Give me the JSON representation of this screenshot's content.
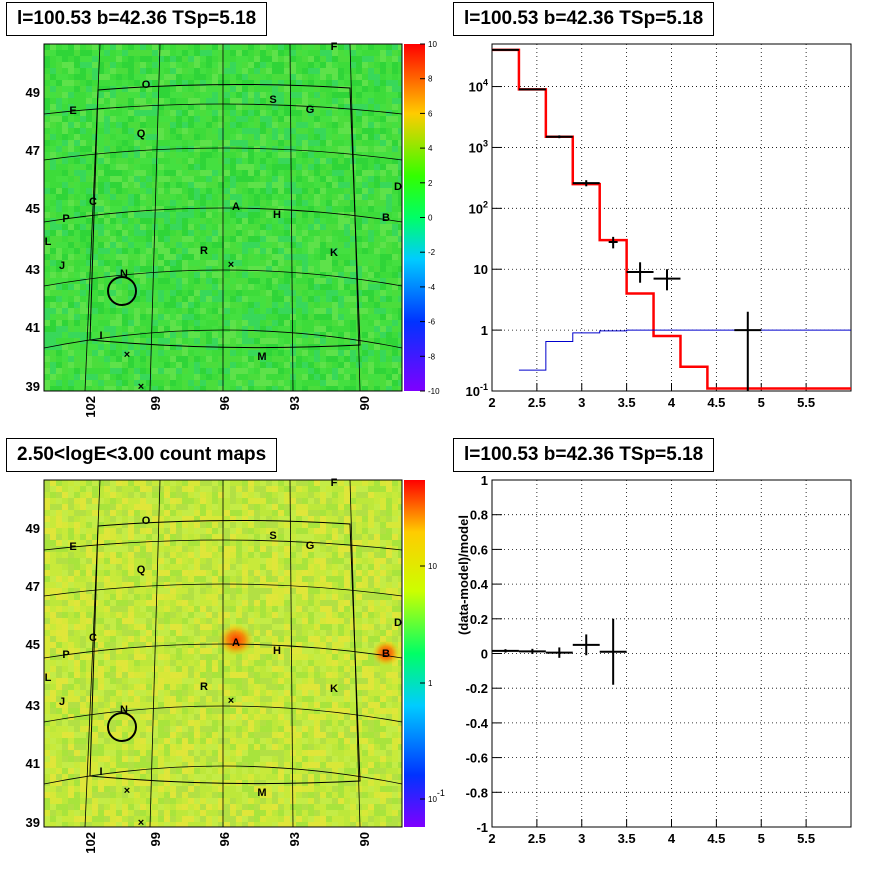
{
  "titles": {
    "map_top": "l=100.53 b=42.36 TSp=5.18",
    "spec_top": "l=100.53 b=42.36 TSp=5.18",
    "map_bottom": "2.50<logE<3.00 count maps",
    "resid_bottom": "l=100.53 b=42.36 TSp=5.18"
  },
  "map_axes": {
    "lat_ticks": [
      "49",
      "47",
      "45",
      "43",
      "41",
      "39"
    ],
    "lon_ticks": [
      "102",
      "99",
      "96",
      "93",
      "90"
    ]
  },
  "sources": [
    "F",
    "O",
    "S",
    "G",
    "E",
    "Q",
    "D",
    "C",
    "A",
    "H",
    "P",
    "B",
    "L",
    "R",
    "K",
    "J",
    "N",
    "I",
    "M"
  ],
  "colorbar_top": {
    "ticks": [
      "10",
      "8",
      "6",
      "4",
      "2",
      "0",
      "-2",
      "-4",
      "-6",
      "-8",
      "-10"
    ]
  },
  "colorbar_bottom": {
    "ticks": [
      "10",
      "1",
      "10^-1"
    ]
  },
  "chart_data": [
    {
      "type": "line",
      "panel": "spectrum",
      "log_y": true,
      "xlim": [
        2,
        6
      ],
      "ylim": [
        0.1,
        50000
      ],
      "x_ticks": [
        "2",
        "2.5",
        "3",
        "3.5",
        "4",
        "4.5",
        "5",
        "5.5"
      ],
      "y_ticks": [
        "10^-1",
        "1",
        "10",
        "10^2",
        "10^3",
        "10^4"
      ],
      "grid": true,
      "series": [
        {
          "style": "red-histogram",
          "bins": [
            2.0,
            2.3,
            2.6,
            2.9,
            3.2,
            3.5,
            3.8,
            4.1,
            4.4,
            4.7,
            5.0,
            5.3,
            5.6,
            6.0
          ],
          "values": [
            40000,
            9000,
            1500,
            250,
            30,
            4,
            0.8,
            0.25,
            0.11,
            0.11,
            0.11,
            0.11,
            0.11
          ]
        },
        {
          "style": "blue-histogram",
          "bins": [
            2.3,
            2.6,
            2.9,
            3.2,
            3.5,
            6.0
          ],
          "values": [
            0.22,
            0.65,
            0.9,
            0.97,
            1.0
          ]
        },
        {
          "style": "data-points",
          "points": [
            {
              "x": 2.15,
              "xerr": 0.15,
              "y": 40000,
              "ylo": 39000,
              "yhi": 41000
            },
            {
              "x": 2.45,
              "xerr": 0.15,
              "y": 9000,
              "ylo": 8800,
              "yhi": 9200
            },
            {
              "x": 2.75,
              "xerr": 0.15,
              "y": 1500,
              "ylo": 1420,
              "yhi": 1580
            },
            {
              "x": 3.05,
              "xerr": 0.15,
              "y": 260,
              "ylo": 230,
              "yhi": 290
            },
            {
              "x": 3.35,
              "xerr": 0.05,
              "y": 28,
              "ylo": 22,
              "yhi": 34
            },
            {
              "x": 3.65,
              "xerr": 0.15,
              "y": 9,
              "ylo": 6,
              "yhi": 13
            },
            {
              "x": 3.95,
              "xerr": 0.15,
              "y": 7,
              "ylo": 4.5,
              "yhi": 10
            },
            {
              "x": 4.85,
              "xerr": 0.15,
              "y": 1,
              "ylo": 0.1,
              "yhi": 2
            }
          ]
        }
      ]
    },
    {
      "type": "scatter",
      "panel": "residual",
      "ylabel": "(data-model)/model",
      "xlim": [
        2,
        6
      ],
      "ylim": [
        -1,
        1
      ],
      "x_ticks": [
        "2",
        "2.5",
        "3",
        "3.5",
        "4",
        "4.5",
        "5",
        "5.5"
      ],
      "y_ticks": [
        "1",
        "0.8",
        "0.6",
        "0.4",
        "0.2",
        "0",
        "-0.2",
        "-0.4",
        "-0.6",
        "-0.8",
        "-1"
      ],
      "grid": true,
      "points": [
        {
          "x": 2.15,
          "xerr": 0.15,
          "y": 0.015,
          "yerr": 0.01
        },
        {
          "x": 2.45,
          "xerr": 0.15,
          "y": 0.012,
          "yerr": 0.015
        },
        {
          "x": 2.75,
          "xerr": 0.15,
          "y": 0.005,
          "yerr": 0.03
        },
        {
          "x": 3.05,
          "xerr": 0.15,
          "y": 0.05,
          "yerr": 0.06
        },
        {
          "x": 3.35,
          "xerr": 0.15,
          "y": 0.01,
          "yerr": 0.19
        }
      ]
    }
  ]
}
